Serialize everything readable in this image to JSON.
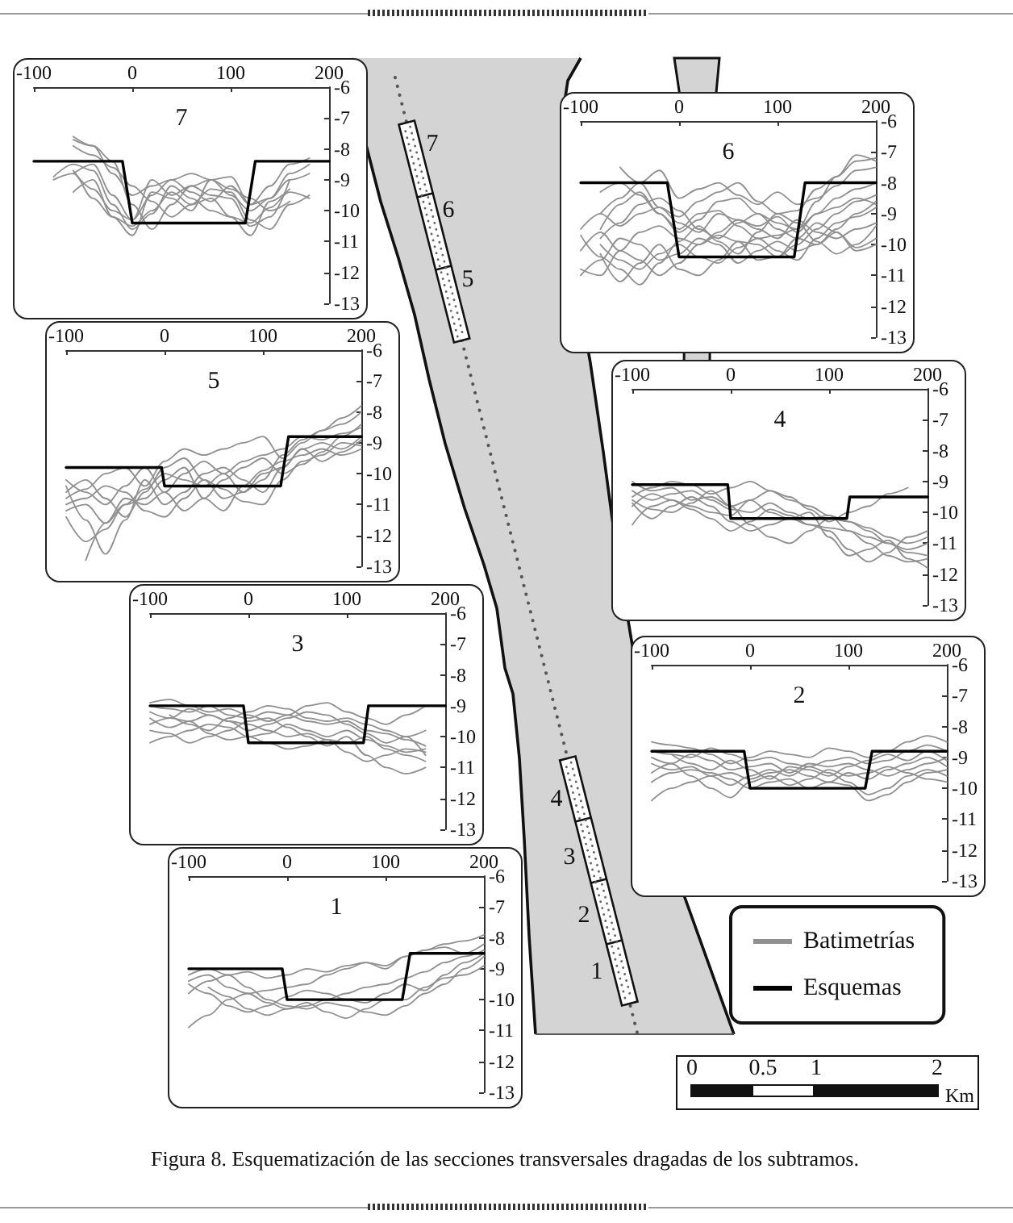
{
  "chart_data": [
    {
      "type": "line",
      "title": "7",
      "x": [
        -80,
        -60,
        -40,
        -20,
        0,
        20,
        40,
        60,
        80,
        100,
        120,
        140,
        160,
        180
      ],
      "series": [
        {
          "color": "#909090",
          "values": [
            null,
            -8.8,
            -8.5,
            -9.5,
            -10.3,
            -9.0,
            -9.5,
            -9.2,
            -9.5,
            -9.6,
            -10.5,
            -10.2,
            -9.0,
            null
          ]
        },
        {
          "color": "#909090",
          "values": [
            null,
            -7.7,
            -7.9,
            -8.4,
            -9.8,
            -10.6,
            -9.8,
            -9.2,
            -9.0,
            -9.5,
            -10.0,
            -9.6,
            -8.8,
            -8.5
          ]
        },
        {
          "color": "#909090",
          "values": [
            -8.9,
            -8.5,
            -8.7,
            -9.8,
            -10.6,
            -10.1,
            -9.2,
            -9.6,
            -10.0,
            -10.2,
            -10.8,
            -9.7,
            -9.3,
            null
          ]
        },
        {
          "color": "#909090",
          "values": [
            null,
            -7.9,
            -8.2,
            -8.6,
            -9.2,
            -9.7,
            -10.2,
            -9.8,
            -9.3,
            -9.4,
            -10.3,
            -10.6,
            -9.8,
            -9.5
          ]
        },
        {
          "color": "#909090",
          "values": [
            null,
            -9.4,
            -9.0,
            -10.2,
            -10.8,
            -9.4,
            -9.6,
            -10.0,
            -9.0,
            -8.9,
            -9.8,
            -9.2,
            -8.5,
            -8.3
          ]
        },
        {
          "color": "#909090",
          "values": [
            null,
            -8.7,
            -9.3,
            -10.0,
            -10.3,
            -9.5,
            -9.0,
            -9.4,
            -9.7,
            -9.2,
            -9.8,
            -9.6,
            -9.0,
            -8.8
          ]
        },
        {
          "color": "#909090",
          "values": [
            null,
            -7.6,
            -7.9,
            -8.8,
            -9.5,
            -9.2,
            -9.0,
            -8.8,
            -9.0,
            -9.3,
            -9.6,
            -10.0,
            -9.7,
            null
          ]
        },
        {
          "color": "#909090",
          "values": [
            -9.0,
            -8.8,
            -9.6,
            -10.2,
            -10.5,
            -10.0,
            -9.4,
            -9.8,
            -9.6,
            -10.2,
            -10.4,
            -9.9,
            -9.4,
            -9.6
          ]
        },
        {
          "color": "#000000",
          "x": [
            -100,
            -10,
            0,
            115,
            125,
            200
          ],
          "values": [
            -8.4,
            -8.4,
            -10.4,
            -10.4,
            -8.4,
            -8.4
          ]
        }
      ],
      "xlim": [
        -100,
        200
      ],
      "xticks": [
        -100,
        0,
        100,
        200
      ],
      "ylim": [
        -13,
        -6
      ],
      "yticks": [
        -6,
        -7,
        -8,
        -9,
        -10,
        -11,
        -12,
        -13
      ],
      "grid": false,
      "marker": "none"
    },
    {
      "type": "line",
      "title": "6",
      "x": [
        -100,
        -80,
        -60,
        -40,
        -20,
        0,
        20,
        40,
        60,
        80,
        100,
        120,
        140,
        160,
        180,
        200
      ],
      "series": [
        {
          "color": "#909090",
          "values": [
            null,
            -9.5,
            -8.7,
            -8.3,
            -9.0,
            -9.6,
            -9.2,
            -8.6,
            -8.5,
            -9.0,
            -9.3,
            -9.5,
            -8.6,
            -7.8,
            -7.3,
            -7.2
          ]
        },
        {
          "color": "#909090",
          "values": [
            null,
            -10.0,
            -10.5,
            -10.8,
            -10.3,
            -10.0,
            -10.4,
            -10.6,
            -10.1,
            -9.8,
            -10.2,
            -10.5,
            -9.8,
            -9.3,
            -9.1,
            -8.8
          ]
        },
        {
          "color": "#909090",
          "values": [
            null,
            -9.0,
            -8.5,
            -8.0,
            -7.6,
            -8.5,
            -8.2,
            -8.0,
            -8.4,
            -8.7,
            -8.3,
            -8.7,
            -8.5,
            -8.1,
            -7.6,
            -7.5
          ]
        },
        {
          "color": "#909090",
          "values": [
            -10.8,
            -11.0,
            -10.2,
            -9.6,
            -9.4,
            -9.8,
            -10.0,
            -9.6,
            -9.2,
            -9.5,
            -9.8,
            -9.2,
            -9.6,
            -9.8,
            -9.5,
            -9.3
          ]
        },
        {
          "color": "#909090",
          "values": [
            null,
            -10.3,
            -11.2,
            -10.6,
            -10.0,
            -10.8,
            -11.0,
            -10.5,
            -9.9,
            -10.0,
            -10.4,
            -10.0,
            -9.5,
            -9.0,
            -8.6,
            -8.4
          ]
        },
        {
          "color": "#909090",
          "values": [
            -9.5,
            -9.0,
            -9.4,
            -9.0,
            -8.8,
            -9.3,
            -9.6,
            -9.0,
            -9.2,
            -9.4,
            -9.1,
            -9.6,
            -9.0,
            -8.5,
            -8.2,
            -8.0
          ]
        },
        {
          "color": "#909090",
          "values": [
            null,
            -8.3,
            -8.0,
            -8.4,
            -9.0,
            -9.5,
            -9.0,
            -8.9,
            -9.4,
            -9.8,
            -9.7,
            -9.5,
            -9.0,
            -8.8,
            -8.5,
            -8.7
          ]
        },
        {
          "color": "#909090",
          "values": [
            -11.0,
            -10.5,
            -9.8,
            -10.0,
            -10.5,
            -10.3,
            -9.8,
            -10.0,
            -10.6,
            -10.2,
            -9.9,
            -10.2,
            -10.0,
            -9.6,
            -10.2,
            -10.0
          ]
        },
        {
          "color": "#909090",
          "values": [
            null,
            -9.8,
            -9.3,
            -8.7,
            -8.5,
            -8.9,
            -9.5,
            -9.8,
            -9.3,
            -9.0,
            -9.5,
            -9.8,
            -10.0,
            -9.5,
            -9.0,
            -8.6
          ]
        },
        {
          "color": "#909090",
          "values": [
            -10.2,
            -9.6,
            -10.2,
            -10.5,
            -11.0,
            -10.6,
            -10.0,
            -9.7,
            -9.9,
            -10.5,
            -10.4,
            -9.8,
            -9.3,
            -9.6,
            -10.1,
            -9.8
          ]
        },
        {
          "color": "#909090",
          "values": [
            null,
            null,
            -7.5,
            -8.0,
            -8.8,
            -9.1,
            -8.6,
            -8.3,
            -8.0,
            -8.6,
            -9.0,
            -8.9,
            -8.2,
            -7.8,
            -7.1,
            -7.3
          ]
        },
        {
          "color": "#909090",
          "values": [
            -9.7,
            -10.4,
            -10.8,
            -11.3,
            -10.6,
            -9.9,
            -9.4,
            -9.9,
            -10.3,
            -9.6,
            -9.0,
            -9.3,
            -9.9,
            -10.3,
            -10.0,
            -9.4
          ]
        },
        {
          "color": "#000000",
          "x": [
            -100,
            -12,
            0,
            117,
            128,
            200
          ],
          "values": [
            -8,
            -8,
            -10.4,
            -10.4,
            -8,
            -8
          ]
        }
      ],
      "xlim": [
        -100,
        200
      ],
      "xticks": [
        -100,
        0,
        100,
        200
      ],
      "ylim": [
        -13,
        -6
      ],
      "yticks": [
        -6,
        -7,
        -8,
        -9,
        -10,
        -11,
        -12,
        -13
      ],
      "grid": false,
      "marker": "none"
    },
    {
      "type": "line",
      "title": "5",
      "x": [
        -100,
        -80,
        -60,
        -40,
        -20,
        0,
        20,
        40,
        60,
        80,
        100,
        120,
        140,
        160,
        180,
        200
      ],
      "series": [
        {
          "color": "#909090",
          "values": [
            -10.8,
            -10.5,
            -10.0,
            -9.8,
            -10.4,
            -9.6,
            -9.2,
            -9.4,
            -9.2,
            -9.0,
            -8.8,
            -9.5,
            -9.0,
            -8.6,
            -8.2,
            -7.8
          ]
        },
        {
          "color": "#909090",
          "values": [
            -11.2,
            -11.0,
            -11.6,
            -11.0,
            -10.5,
            -10.0,
            -10.2,
            -10.4,
            -10.0,
            -9.6,
            -9.4,
            -9.2,
            -8.8,
            -8.9,
            -8.7,
            -8.5
          ]
        },
        {
          "color": "#909090",
          "values": [
            -10.4,
            -11.5,
            -12.6,
            -11.5,
            -10.2,
            -11.0,
            -10.6,
            -10.0,
            -9.8,
            -10.2,
            -10.6,
            -9.8,
            -9.2,
            -9.0,
            -9.2,
            -8.8
          ]
        },
        {
          "color": "#909090",
          "values": [
            -11.0,
            -10.8,
            -10.4,
            -10.6,
            -11.2,
            -11.4,
            -10.8,
            -10.2,
            -10.5,
            -10.9,
            -11.0,
            -10.2,
            -9.6,
            -9.4,
            -9.0,
            -9.1
          ]
        },
        {
          "color": "#909090",
          "values": [
            -11.4,
            -12.2,
            -11.8,
            -11.0,
            -10.8,
            -10.2,
            -9.8,
            -10.8,
            -11.2,
            -10.4,
            -9.9,
            -9.6,
            -9.4,
            -9.2,
            -9.4,
            -9.2
          ]
        },
        {
          "color": "#909090",
          "values": [
            -10.2,
            -10.6,
            -11.0,
            -10.4,
            -9.8,
            -10.6,
            -11.2,
            -10.8,
            -10.2,
            -9.8,
            -9.5,
            -10.0,
            -9.7,
            -9.3,
            -8.8,
            -8.4
          ]
        },
        {
          "color": "#909090",
          "values": [
            null,
            -12.8,
            -11.6,
            -10.8,
            -11.0,
            -10.6,
            -10.0,
            -9.6,
            -10.0,
            -10.6,
            -10.2,
            -9.4,
            -8.9,
            -8.6,
            -8.4,
            -8.0
          ]
        },
        {
          "color": "#909090",
          "values": [
            -10.6,
            -10.2,
            -10.8,
            -11.4,
            -10.6,
            -9.8,
            -9.5,
            -10.2,
            -10.8,
            -10.6,
            -10.0,
            -9.8,
            -9.2,
            -9.6,
            -9.3,
            -8.9
          ]
        },
        {
          "color": "#000000",
          "x": [
            -100,
            -3,
            0,
            118,
            126,
            200
          ],
          "values": [
            -9.8,
            -9.8,
            -10.4,
            -10.4,
            -8.8,
            -8.8
          ]
        }
      ],
      "xlim": [
        -100,
        200
      ],
      "xticks": [
        -100,
        0,
        100,
        200
      ],
      "ylim": [
        -13,
        -6
      ],
      "yticks": [
        -6,
        -7,
        -8,
        -9,
        -10,
        -11,
        -12,
        -13
      ],
      "grid": false,
      "marker": "none"
    },
    {
      "type": "line",
      "title": "4",
      "x": [
        -100,
        -80,
        -60,
        -40,
        -20,
        0,
        20,
        40,
        60,
        80,
        100,
        120,
        140,
        160,
        180,
        200
      ],
      "series": [
        {
          "color": "#909090",
          "values": [
            -9.0,
            -9.3,
            -9.2,
            -9.6,
            -9.5,
            -9.8,
            -9.6,
            -10.0,
            -10.2,
            -10.4,
            -10.5,
            -10.6,
            -10.8,
            -11.0,
            -11.2,
            -11.0
          ]
        },
        {
          "color": "#909090",
          "values": [
            -9.5,
            -9.2,
            -9.0,
            -9.1,
            -9.4,
            -9.2,
            -9.0,
            -9.3,
            -9.6,
            -9.8,
            -10.1,
            -10.6,
            -11.0,
            -11.4,
            -11.6,
            -11.5
          ]
        },
        {
          "color": "#909090",
          "values": [
            -10.4,
            -9.8,
            -9.6,
            -9.9,
            -10.2,
            -10.6,
            -10.3,
            -9.9,
            -10.1,
            -10.4,
            -10.6,
            -11.2,
            -11.6,
            -11.3,
            -10.8,
            -10.6
          ]
        },
        {
          "color": "#909090",
          "values": [
            -9.6,
            -9.9,
            -10.0,
            -9.7,
            -9.3,
            -9.8,
            -10.4,
            -10.8,
            -11.0,
            -10.6,
            -10.2,
            -10.3,
            -10.6,
            -11.0,
            -11.3,
            -11.4
          ]
        },
        {
          "color": "#909090",
          "values": [
            -9.8,
            -9.4,
            -9.6,
            -9.8,
            -10.0,
            -10.1,
            -9.6,
            -9.3,
            -9.5,
            -9.9,
            -10.3,
            -10.0,
            -9.8,
            -9.4,
            -9.2,
            null
          ]
        },
        {
          "color": "#909090",
          "values": [
            -9.3,
            -9.6,
            -9.4,
            -9.3,
            -9.6,
            -9.9,
            -10.0,
            -9.7,
            -10.0,
            -10.2,
            -10.1,
            -10.3,
            -10.5,
            -10.8,
            -11.0,
            -10.8
          ]
        },
        {
          "color": "#909090",
          "values": [
            -9.7,
            -10.2,
            -9.8,
            -9.5,
            -9.8,
            -10.3,
            -10.6,
            -10.4,
            -10.2,
            -10.0,
            -10.8,
            -11.4,
            -11.2,
            -10.9,
            -11.5,
            -11.8
          ]
        },
        {
          "color": "#000000",
          "x": [
            -100,
            -3,
            0,
            118,
            121,
            200
          ],
          "values": [
            -9.1,
            -9.1,
            -10.2,
            -10.2,
            -9.5,
            -9.5
          ]
        }
      ],
      "xlim": [
        -100,
        200
      ],
      "xticks": [
        -100,
        0,
        100,
        200
      ],
      "ylim": [
        -13,
        -6
      ],
      "yticks": [
        -6,
        -7,
        -8,
        -9,
        -10,
        -11,
        -12,
        -13
      ],
      "grid": false,
      "marker": "none"
    },
    {
      "type": "line",
      "title": "3",
      "x": [
        -100,
        -80,
        -60,
        -40,
        -20,
        0,
        20,
        40,
        60,
        80,
        100,
        120,
        140,
        160,
        180
      ],
      "series": [
        {
          "color": "#909090",
          "values": [
            -9.0,
            -9.1,
            -9.2,
            -9.0,
            -9.3,
            -9.4,
            -9.2,
            -9.3,
            -9.5,
            -9.6,
            -9.5,
            -9.8,
            -9.9,
            -10.1,
            -10.3
          ]
        },
        {
          "color": "#909090",
          "values": [
            -9.6,
            -9.4,
            -9.5,
            -9.3,
            -9.5,
            -9.6,
            -9.8,
            -10.0,
            -9.9,
            -10.1,
            -10.2,
            -10.0,
            -10.4,
            -10.6,
            -10.8
          ]
        },
        {
          "color": "#909090",
          "values": [
            -10.2,
            -10.0,
            -9.8,
            -9.6,
            -9.7,
            -10.0,
            -10.2,
            -10.4,
            -10.3,
            -10.1,
            -10.5,
            -10.8,
            -10.6,
            -10.4,
            -10.5
          ]
        },
        {
          "color": "#909090",
          "values": [
            -9.2,
            -9.4,
            -9.1,
            -9.3,
            -9.5,
            -9.8,
            -9.6,
            -9.4,
            -9.2,
            -9.3,
            -9.6,
            -9.9,
            -10.2,
            -10.0,
            -9.8
          ]
        },
        {
          "color": "#909090",
          "values": [
            -9.8,
            -9.9,
            -10.2,
            -10.0,
            -9.8,
            -9.5,
            -9.4,
            -9.7,
            -10.0,
            -10.3,
            -10.0,
            -10.6,
            -11.0,
            -11.2,
            -11.0
          ]
        },
        {
          "color": "#909090",
          "values": [
            -8.9,
            -8.8,
            -9.0,
            -9.2,
            -9.1,
            -9.3,
            -9.5,
            -9.3,
            -9.0,
            -8.9,
            -9.2,
            -9.4,
            -9.6,
            -9.3,
            -9.0
          ]
        },
        {
          "color": "#909090",
          "values": [
            -9.4,
            -9.7,
            -9.5,
            -9.9,
            -10.1,
            -10.0,
            -9.9,
            -9.6,
            -9.8,
            -10.0,
            -9.8,
            -10.1,
            -10.3,
            -10.5,
            -10.4
          ]
        },
        {
          "color": "#909090",
          "values": [
            null,
            -9.3,
            -9.6,
            -9.8,
            -9.4,
            -9.2,
            -9.0,
            -9.1,
            -9.4,
            -9.5,
            -9.4,
            -9.6,
            -9.8,
            -10.0,
            -10.6
          ]
        },
        {
          "color": "#000000",
          "x": [
            -100,
            -5,
            0,
            117,
            122,
            200
          ],
          "values": [
            -9,
            -9,
            -10.2,
            -10.2,
            -9,
            -9
          ]
        }
      ],
      "xlim": [
        -100,
        200
      ],
      "xticks": [
        -100,
        0,
        100,
        200
      ],
      "ylim": [
        -13,
        -6
      ],
      "yticks": [
        -6,
        -7,
        -8,
        -9,
        -10,
        -11,
        -12,
        -13
      ],
      "grid": false,
      "marker": "none"
    },
    {
      "type": "line",
      "title": "2",
      "x": [
        -100,
        -80,
        -60,
        -40,
        -20,
        0,
        20,
        40,
        60,
        80,
        100,
        120,
        140,
        160,
        180,
        200
      ],
      "series": [
        {
          "color": "#909090",
          "values": [
            -8.8,
            -8.9,
            -9.0,
            -8.7,
            -8.9,
            -9.1,
            -9.0,
            -9.2,
            -9.3,
            -9.1,
            -9.0,
            -9.2,
            -9.1,
            -8.8,
            -8.6,
            -8.8
          ]
        },
        {
          "color": "#909090",
          "values": [
            -9.2,
            -9.4,
            -9.3,
            -9.6,
            -9.5,
            -9.7,
            -9.5,
            -9.4,
            -9.6,
            -9.8,
            -9.5,
            -9.7,
            -9.4,
            -9.2,
            -9.0,
            -9.3
          ]
        },
        {
          "color": "#909090",
          "values": [
            -10.4,
            -10.0,
            -9.8,
            -9.6,
            -9.9,
            -9.6,
            -9.4,
            -9.6,
            -9.3,
            -9.5,
            -9.8,
            -10.2,
            -10.0,
            -9.6,
            -9.4,
            -9.6
          ]
        },
        {
          "color": "#909090",
          "values": [
            -8.5,
            -8.6,
            -8.7,
            -8.9,
            -9.2,
            -9.0,
            -8.8,
            -8.9,
            -9.0,
            -8.7,
            -8.8,
            -9.0,
            -8.8,
            -8.5,
            -8.3,
            -8.5
          ]
        },
        {
          "color": "#909090",
          "values": [
            -9.5,
            -9.2,
            -9.6,
            -10.0,
            -10.3,
            -9.8,
            -9.6,
            -9.9,
            -9.7,
            -9.4,
            -9.6,
            -9.5,
            -9.3,
            -9.5,
            -9.7,
            -9.8
          ]
        },
        {
          "color": "#909090",
          "values": [
            -9.0,
            -9.2,
            -8.9,
            -9.1,
            -9.4,
            -9.3,
            -9.2,
            -9.5,
            -9.2,
            -9.3,
            -9.2,
            -9.4,
            -9.6,
            -9.4,
            -9.2,
            -9.0
          ]
        },
        {
          "color": "#909090",
          "values": [
            -9.8,
            -9.5,
            -9.4,
            -9.5,
            -9.7,
            -10.0,
            -9.8,
            -9.7,
            -10.0,
            -9.8,
            -9.9,
            -10.4,
            -10.2,
            -9.8,
            -9.5,
            -9.4
          ]
        },
        {
          "color": "#909090",
          "values": [
            null,
            -8.9,
            -9.2,
            -9.4,
            -9.1,
            -9.4,
            -9.7,
            -9.3,
            -9.4,
            -9.6,
            -9.3,
            -9.1,
            -8.9,
            -9.1,
            -8.8,
            -9.1
          ]
        },
        {
          "color": "#000000",
          "x": [
            -100,
            -6,
            0,
            117,
            124,
            200
          ],
          "values": [
            -8.8,
            -8.8,
            -10,
            -10,
            -8.8,
            -8.8
          ]
        }
      ],
      "xlim": [
        -100,
        200
      ],
      "xticks": [
        -100,
        0,
        100,
        200
      ],
      "ylim": [
        -13,
        -6
      ],
      "yticks": [
        -6,
        -7,
        -8,
        -9,
        -10,
        -11,
        -12,
        -13
      ],
      "grid": false,
      "marker": "none"
    },
    {
      "type": "line",
      "title": "1",
      "x": [
        -100,
        -80,
        -60,
        -40,
        -20,
        0,
        20,
        40,
        60,
        80,
        100,
        120,
        140,
        160,
        180,
        200
      ],
      "series": [
        {
          "name": "Batimetrías",
          "color": "#909090",
          "values": [
            -9.4,
            -9.2,
            -9.6,
            -9.8,
            -9.7,
            -9.6,
            -9.5,
            -9.2,
            -9.0,
            -8.8,
            -8.9,
            -8.6,
            -8.4,
            -8.2,
            -8.1,
            -7.9
          ]
        },
        {
          "color": "#909090",
          "values": [
            -10.9,
            -10.5,
            -10.0,
            -9.8,
            -10.1,
            -10.3,
            -10.2,
            -10.0,
            -9.8,
            -9.6,
            -9.5,
            -9.3,
            -9.1,
            -8.8,
            -8.6,
            -8.4
          ]
        },
        {
          "color": "#909090",
          "values": [
            -9.8,
            -9.4,
            -9.2,
            -9.6,
            -10.0,
            -10.2,
            -10.3,
            -10.1,
            -10.2,
            -10.4,
            -10.5,
            -10.2,
            -9.8,
            -9.5,
            -9.0,
            -8.6
          ]
        },
        {
          "color": "#909090",
          "values": [
            -9.5,
            -9.8,
            -10.2,
            -10.4,
            -10.2,
            -9.9,
            -9.7,
            -9.8,
            -10.0,
            -10.1,
            -9.8,
            -9.5,
            -9.7,
            -9.2,
            -8.8,
            -8.5
          ]
        },
        {
          "color": "#909090",
          "values": [
            -9.2,
            -9.0,
            -9.2,
            -9.1,
            -9.3,
            -9.2,
            -9.0,
            -9.1,
            -8.9,
            -8.8,
            -9.0,
            -8.6,
            -8.4,
            -8.3,
            -8.5,
            -8.2
          ]
        },
        {
          "color": "#909090",
          "values": [
            null,
            -9.6,
            -9.9,
            -10.3,
            -10.5,
            -10.3,
            -10.1,
            -10.4,
            -10.6,
            -10.3,
            -10.0,
            -10.0,
            -9.6,
            -9.3,
            -9.2,
            -8.9
          ]
        },
        {
          "name": "Esquemas",
          "color": "#000000",
          "x": [
            -100,
            -5,
            0,
            117,
            125,
            200
          ],
          "values": [
            -9,
            -9,
            -10,
            -10,
            -8.5,
            -8.5
          ]
        }
      ],
      "xlim": [
        -100,
        200
      ],
      "xticks": [
        -100,
        0,
        100,
        200
      ],
      "ylim": [
        -13,
        -6
      ],
      "yticks": [
        -6,
        -7,
        -8,
        -9,
        -10,
        -11,
        -12,
        -13
      ],
      "grid": false,
      "marker": "none",
      "legend": "right"
    },
    {
      "type": "other",
      "annotations": [
        "7",
        "6",
        "5",
        "4",
        "3",
        "2",
        "1",
        "0",
        "0.5",
        "1",
        "2",
        "Km",
        "Figura 8. Esquematización de las secciones transversales dragadas de los subtramos."
      ]
    }
  ]
}
